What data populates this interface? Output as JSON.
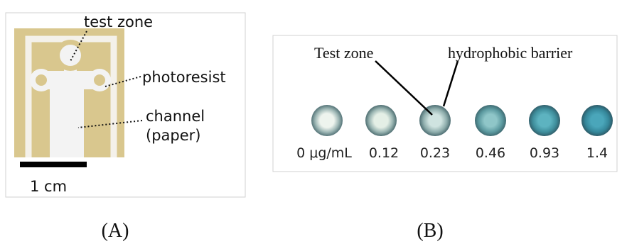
{
  "panel_a": {
    "labels": [
      "test zone",
      "photoresist",
      "channel",
      "(paper)"
    ],
    "scale_bar": "1 cm",
    "caption": "(A)"
  },
  "panel_b": {
    "labels": [
      "Test zone",
      "hydrophobic barrier"
    ],
    "concentrations": [
      "0 μg/mL",
      "0.12",
      "0.23",
      "0.46",
      "0.93",
      "1.4"
    ],
    "caption": "(B)"
  }
}
